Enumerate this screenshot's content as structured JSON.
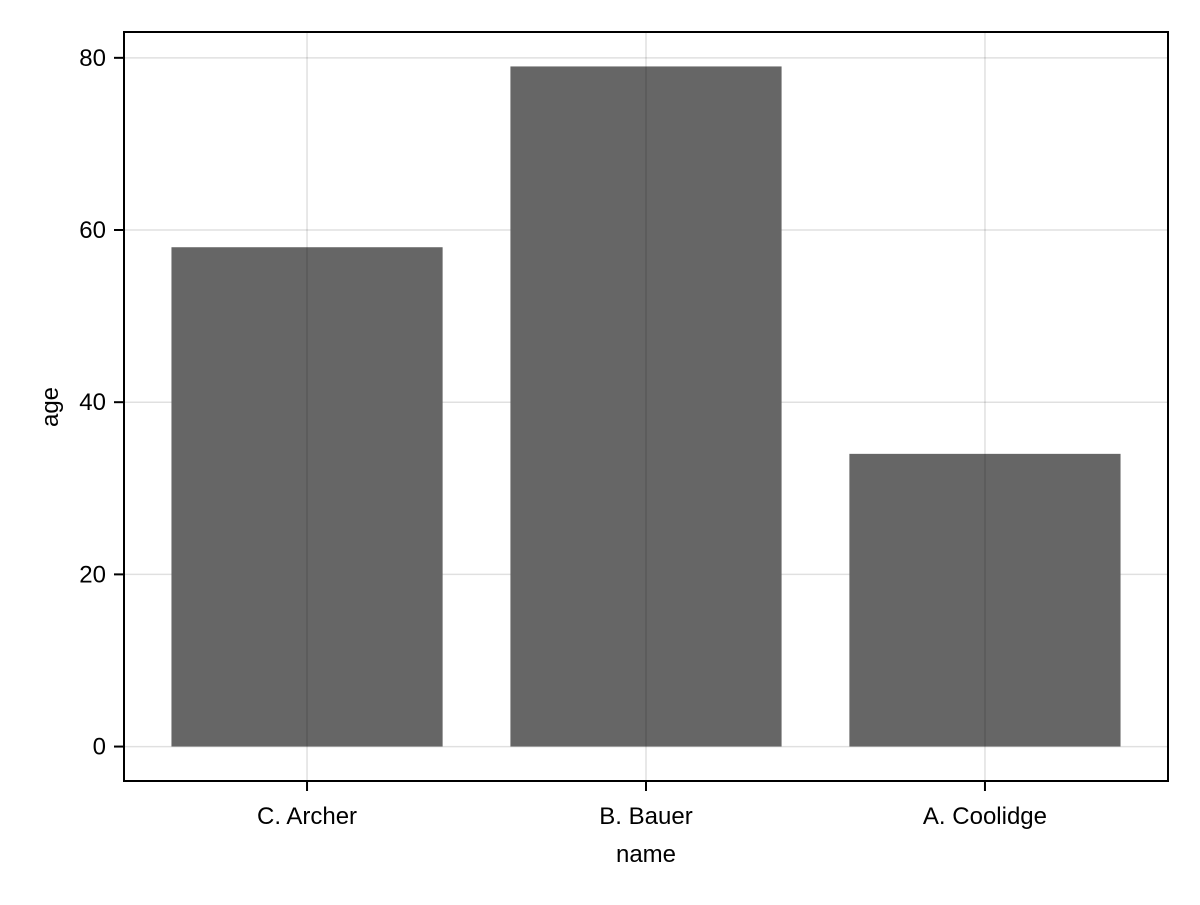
{
  "chart_data": {
    "type": "bar",
    "xlabel": "name",
    "ylabel": "age",
    "categories": [
      "C. Archer",
      "B. Bauer",
      "A. Coolidge"
    ],
    "values": [
      58,
      79,
      34
    ],
    "ylim": [
      -4,
      83
    ],
    "yticks": [
      0,
      20,
      40,
      60,
      80
    ],
    "grid": true,
    "bar_color": "#666666",
    "legend": "none"
  }
}
